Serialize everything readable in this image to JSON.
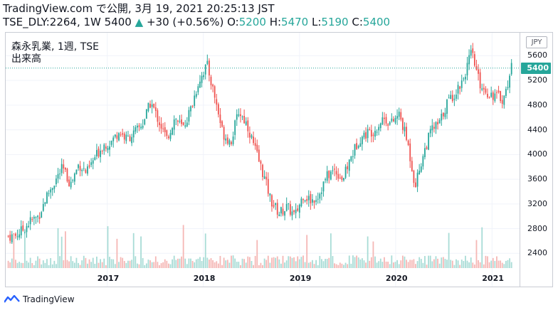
{
  "header": {
    "line1": "TradingView.com で公開, 3月 19, 2021 20:25:13 JST",
    "symbol": "TSE_DLY:2264, 1W",
    "close": "5400",
    "change": "+30 (+0.56%)",
    "o_label": "O:",
    "o": "5200",
    "h_label": "H:",
    "h": "5470",
    "l_label": "L:",
    "l": "5190",
    "c_label": "C:",
    "c": "5400"
  },
  "legend": {
    "title": "森永乳業, 1週, TSE",
    "volume": "出来高"
  },
  "currency": "JPY",
  "last_price_label": "5400",
  "branding": "TradingView",
  "colors": {
    "up": "#26a69a",
    "down": "#ef5350"
  },
  "chart_data": {
    "type": "candlestick",
    "title": "森永乳業, 1週, TSE",
    "currency": "JPY",
    "yticks": [
      2400,
      2800,
      3200,
      3600,
      4000,
      4400,
      4800,
      5200,
      5600
    ],
    "ylim": [
      2150,
      5950
    ],
    "xticks": [
      "2017",
      "2018",
      "2019",
      "2020",
      "2021"
    ],
    "last_price": 5400,
    "volume_label": "出来高",
    "series": [
      {
        "date": "2016-01",
        "close": 2680
      },
      {
        "date": "2016-02",
        "close": 2780
      },
      {
        "date": "2016-03",
        "close": 2920
      },
      {
        "date": "2016-04",
        "close": 3000
      },
      {
        "date": "2016-05",
        "close": 3320
      },
      {
        "date": "2016-06",
        "close": 3560
      },
      {
        "date": "2016-07",
        "close": 3780
      },
      {
        "date": "2016-08",
        "close": 3520
      },
      {
        "date": "2016-09",
        "close": 3850
      },
      {
        "date": "2016-10",
        "close": 3700
      },
      {
        "date": "2016-11",
        "close": 3950
      },
      {
        "date": "2016-12",
        "close": 4150
      },
      {
        "date": "2017-01",
        "close": 4200
      },
      {
        "date": "2017-02",
        "close": 4380
      },
      {
        "date": "2017-03",
        "close": 4250
      },
      {
        "date": "2017-04",
        "close": 4350
      },
      {
        "date": "2017-05",
        "close": 4500
      },
      {
        "date": "2017-06",
        "close": 4850
      },
      {
        "date": "2017-07",
        "close": 4550
      },
      {
        "date": "2017-08",
        "close": 4250
      },
      {
        "date": "2017-09",
        "close": 4600
      },
      {
        "date": "2017-10",
        "close": 4420
      },
      {
        "date": "2017-11",
        "close": 4750
      },
      {
        "date": "2017-12",
        "close": 5200
      },
      {
        "date": "2018-01",
        "close": 5450
      },
      {
        "date": "2018-02",
        "close": 4900
      },
      {
        "date": "2018-03",
        "close": 4350
      },
      {
        "date": "2018-04",
        "close": 4200
      },
      {
        "date": "2018-05",
        "close": 4700
      },
      {
        "date": "2018-06",
        "close": 4500
      },
      {
        "date": "2018-07",
        "close": 4100
      },
      {
        "date": "2018-08",
        "close": 3700
      },
      {
        "date": "2018-09",
        "close": 3250
      },
      {
        "date": "2018-10",
        "close": 3050
      },
      {
        "date": "2018-11",
        "close": 3150
      },
      {
        "date": "2018-12",
        "close": 3000
      },
      {
        "date": "2019-01",
        "close": 3350
      },
      {
        "date": "2019-02",
        "close": 3250
      },
      {
        "date": "2019-03",
        "close": 3350
      },
      {
        "date": "2019-04",
        "close": 3650
      },
      {
        "date": "2019-05",
        "close": 3750
      },
      {
        "date": "2019-06",
        "close": 3600
      },
      {
        "date": "2019-07",
        "close": 3950
      },
      {
        "date": "2019-08",
        "close": 4250
      },
      {
        "date": "2019-09",
        "close": 4350
      },
      {
        "date": "2019-10",
        "close": 4400
      },
      {
        "date": "2019-11",
        "close": 4600
      },
      {
        "date": "2019-12",
        "close": 4500
      },
      {
        "date": "2020-01",
        "close": 4650
      },
      {
        "date": "2020-02",
        "close": 4200
      },
      {
        "date": "2020-03",
        "close": 3500
      },
      {
        "date": "2020-04",
        "close": 4000
      },
      {
        "date": "2020-05",
        "close": 4400
      },
      {
        "date": "2020-06",
        "close": 4500
      },
      {
        "date": "2020-07",
        "close": 4850
      },
      {
        "date": "2020-08",
        "close": 5000
      },
      {
        "date": "2020-09",
        "close": 5250
      },
      {
        "date": "2020-10",
        "close": 5650
      },
      {
        "date": "2020-11",
        "close": 5150
      },
      {
        "date": "2020-12",
        "close": 5000
      },
      {
        "date": "2021-01",
        "close": 4950
      },
      {
        "date": "2021-02",
        "close": 4900
      },
      {
        "date": "2021-03",
        "close": 5400
      }
    ]
  }
}
